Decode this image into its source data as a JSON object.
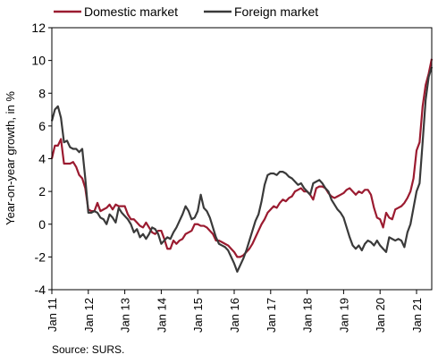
{
  "chart_data": {
    "type": "line",
    "ylabel": "Year-on-year growth, in %",
    "ylim": [
      -4,
      12
    ],
    "yticks": [
      -4,
      -2,
      0,
      2,
      4,
      6,
      8,
      10,
      12
    ],
    "x_range": [
      "Jan 11",
      "Dec 21"
    ],
    "x_tick_labels": [
      "Jan 11",
      "Jan 12",
      "Jan 13",
      "Jan 14",
      "Jan 15",
      "Jan 16",
      "Jan 17",
      "Jan 18",
      "Jan 19",
      "Jan 20",
      "Jan 21"
    ],
    "grid": false,
    "legend_position": "top",
    "source": "Source: SURS.",
    "series": [
      {
        "name": "Domestic market",
        "color": "#9b1b30",
        "values": [
          4.0,
          4.8,
          4.8,
          5.2,
          3.7,
          3.7,
          3.7,
          3.8,
          3.5,
          3.0,
          2.8,
          2.2,
          0.9,
          0.8,
          0.8,
          1.3,
          0.8,
          0.9,
          1.0,
          1.2,
          0.9,
          1.2,
          1.1,
          1.1,
          1.1,
          0.6,
          0.3,
          0.3,
          0.1,
          -0.1,
          -0.2,
          0.1,
          -0.2,
          -0.5,
          -0.6,
          -0.4,
          -0.4,
          -0.9,
          -1.5,
          -1.5,
          -1.0,
          -1.2,
          -1.0,
          -0.9,
          -0.6,
          -0.5,
          -0.4,
          0.0,
          0.0,
          -0.1,
          -0.1,
          -0.2,
          -0.4,
          -0.6,
          -1.0,
          -1.0,
          -1.1,
          -1.2,
          -1.3,
          -1.5,
          -1.7,
          -2.0,
          -2.0,
          -1.9,
          -1.7,
          -1.5,
          -1.2,
          -0.8,
          -0.4,
          0.0,
          0.3,
          0.7,
          0.9,
          1.1,
          1.0,
          1.3,
          1.5,
          1.4,
          1.6,
          1.7,
          2.0,
          2.1,
          2.2,
          2.0,
          2.0,
          1.8,
          1.5,
          2.2,
          2.3,
          2.3,
          2.2,
          1.9,
          1.7,
          1.6,
          1.7,
          1.8,
          1.9,
          2.1,
          2.2,
          2.0,
          1.8,
          2.0,
          1.9,
          2.1,
          2.1,
          1.8,
          1.0,
          0.4,
          0.3,
          -0.2,
          0.7,
          0.4,
          0.3,
          0.9,
          1.0,
          1.1,
          1.3,
          1.6,
          2.0,
          2.8,
          4.5,
          5.0,
          7.2,
          8.5,
          9.2,
          10.1
        ]
      },
      {
        "name": "Foreign market",
        "color": "#3a3a3a",
        "values": [
          6.3,
          7.0,
          7.2,
          6.5,
          5.0,
          5.1,
          4.7,
          4.6,
          4.6,
          4.4,
          4.6,
          2.8,
          0.7,
          0.7,
          0.8,
          0.7,
          0.4,
          0.3,
          0.0,
          0.6,
          0.4,
          0.1,
          1.0,
          0.7,
          0.5,
          0.3,
          0.0,
          -0.5,
          -0.3,
          -0.8,
          -0.6,
          -0.9,
          -0.6,
          -0.2,
          -0.3,
          -0.6,
          -1.2,
          -1.0,
          -0.8,
          -0.9,
          -0.5,
          -0.2,
          0.2,
          0.6,
          1.1,
          0.8,
          0.3,
          0.4,
          0.8,
          1.8,
          1.0,
          0.8,
          0.4,
          -0.2,
          -0.8,
          -1.2,
          -1.3,
          -1.4,
          -1.6,
          -2.0,
          -2.4,
          -2.9,
          -2.5,
          -2.1,
          -1.6,
          -1.0,
          -0.4,
          0.2,
          0.6,
          1.4,
          2.4,
          3.0,
          3.1,
          3.1,
          3.0,
          3.2,
          3.2,
          3.1,
          2.9,
          2.8,
          2.6,
          2.4,
          2.5,
          2.2,
          2.0,
          1.8,
          2.5,
          2.6,
          2.7,
          2.5,
          2.2,
          2.0,
          1.5,
          1.2,
          0.9,
          0.7,
          0.4,
          -0.2,
          -0.8,
          -1.3,
          -1.5,
          -1.3,
          -1.6,
          -1.2,
          -1.0,
          -1.1,
          -1.3,
          -1.0,
          -1.3,
          -1.5,
          -1.7,
          -0.8,
          -0.9,
          -1.0,
          -0.9,
          -1.0,
          -1.4,
          -0.5,
          0.0,
          1.0,
          2.0,
          2.5,
          5.0,
          7.6,
          9.0,
          9.6
        ]
      }
    ]
  }
}
